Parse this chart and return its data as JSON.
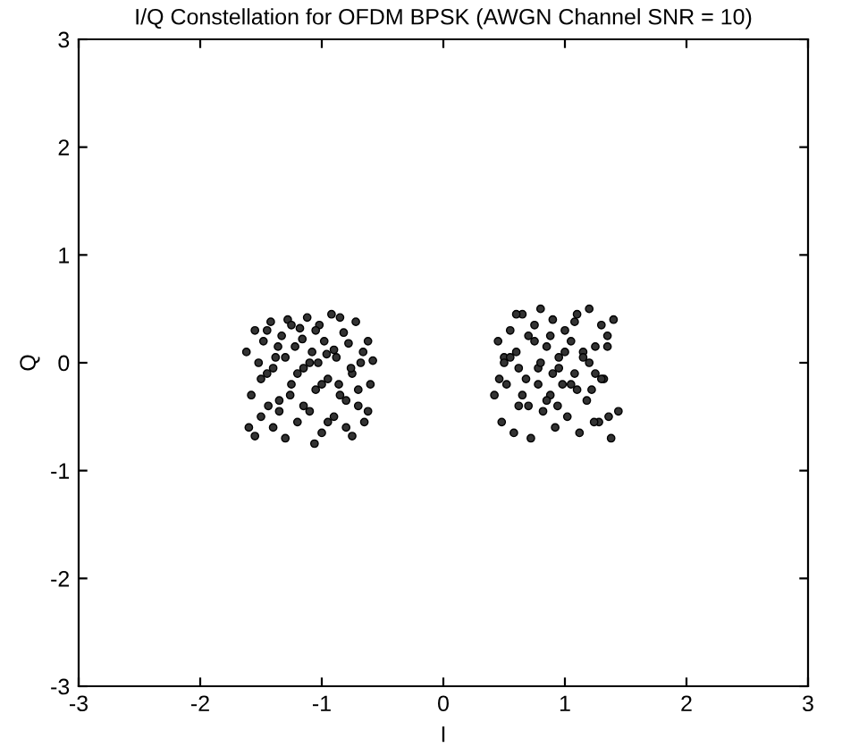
{
  "chart_data": {
    "type": "scatter",
    "title": "I/Q Constellation for OFDM BPSK (AWGN Channel SNR = 10)",
    "xlabel": "I",
    "ylabel": "Q",
    "xlim": [
      -3,
      3
    ],
    "ylim": [
      -3,
      3
    ],
    "xticks": [
      -3,
      -2,
      -1,
      0,
      1,
      2,
      3
    ],
    "yticks": [
      -3,
      -2,
      -1,
      0,
      1,
      2,
      3
    ],
    "grid": false,
    "marker": "circle",
    "series": [
      {
        "color": "#333333",
        "x": [
          -1.62,
          -1.58,
          -1.55,
          -1.5,
          -1.48,
          -1.45,
          -1.42,
          -1.4,
          -1.38,
          -1.35,
          -1.33,
          -1.3,
          -1.28,
          -1.25,
          -1.22,
          -1.2,
          -1.18,
          -1.15,
          -1.12,
          -1.1,
          -1.08,
          -1.05,
          -1.02,
          -1.0,
          -0.98,
          -0.95,
          -0.92,
          -0.9,
          -0.88,
          -0.85,
          -0.82,
          -0.8,
          -0.78,
          -0.75,
          -0.72,
          -0.7,
          -0.68,
          -0.65,
          -0.62,
          -0.6,
          -0.58,
          -1.6,
          -1.52,
          -1.44,
          -1.36,
          -1.26,
          -1.16,
          -1.06,
          -0.96,
          -0.86,
          -0.76,
          -0.66,
          -1.5,
          -1.4,
          -1.3,
          -1.2,
          -1.1,
          -1.0,
          -0.9,
          -0.8,
          -0.7,
          -1.45,
          -1.35,
          -1.25,
          -1.15,
          -1.05,
          -0.95,
          -0.85,
          -0.75,
          -1.03,
          -1.55,
          -0.62,
          0.42,
          0.45,
          0.48,
          0.5,
          0.52,
          0.55,
          0.58,
          0.6,
          0.62,
          0.65,
          0.68,
          0.7,
          0.72,
          0.75,
          0.78,
          0.8,
          0.82,
          0.85,
          0.88,
          0.9,
          0.92,
          0.95,
          0.98,
          1.0,
          1.02,
          1.05,
          1.08,
          1.1,
          1.12,
          1.15,
          1.18,
          1.2,
          1.22,
          1.25,
          1.28,
          1.3,
          1.32,
          1.35,
          1.38,
          1.4,
          1.44,
          0.5,
          0.6,
          0.7,
          0.8,
          0.9,
          1.0,
          1.1,
          1.2,
          1.3,
          0.55,
          0.65,
          0.75,
          0.85,
          0.95,
          1.05,
          1.15,
          1.25,
          1.35,
          0.62,
          0.78,
          0.94,
          1.08,
          1.24,
          0.88,
          1.36,
          0.46
        ],
        "values": [
          0.1,
          -0.3,
          0.3,
          -0.5,
          0.2,
          -0.1,
          0.38,
          -0.6,
          0.05,
          -0.35,
          0.25,
          -0.7,
          0.4,
          -0.2,
          0.15,
          -0.55,
          0.32,
          -0.05,
          0.42,
          -0.45,
          0.1,
          -0.25,
          0.35,
          -0.65,
          0.2,
          -0.15,
          0.45,
          -0.5,
          0.05,
          -0.3,
          0.28,
          -0.6,
          0.18,
          -0.1,
          0.38,
          -0.4,
          0.0,
          -0.55,
          0.2,
          -0.2,
          0.02,
          -0.6,
          0.0,
          -0.4,
          0.15,
          -0.3,
          0.22,
          -0.75,
          0.08,
          -0.2,
          -0.05,
          0.1,
          -0.15,
          -0.05,
          0.05,
          -0.1,
          0.0,
          -0.2,
          0.12,
          -0.35,
          -0.25,
          0.3,
          -0.45,
          0.35,
          -0.4,
          0.3,
          -0.55,
          0.42,
          -0.68,
          0.0,
          -0.68,
          -0.45,
          -0.3,
          0.2,
          -0.55,
          0.05,
          -0.2,
          0.3,
          -0.65,
          0.1,
          -0.4,
          0.45,
          -0.15,
          0.25,
          -0.7,
          0.35,
          -0.05,
          0.5,
          -0.45,
          0.15,
          -0.3,
          0.4,
          -0.6,
          0.05,
          -0.2,
          0.3,
          -0.5,
          0.2,
          -0.1,
          0.45,
          -0.65,
          0.1,
          -0.35,
          0.5,
          -0.25,
          0.15,
          -0.55,
          0.35,
          -0.15,
          0.25,
          -0.7,
          0.4,
          -0.45,
          0.0,
          0.45,
          -0.4,
          0.0,
          -0.1,
          0.1,
          -0.25,
          0.0,
          -0.15,
          0.05,
          -0.3,
          0.2,
          -0.35,
          -0.05,
          -0.2,
          0.05,
          -0.1,
          0.15,
          -0.05,
          -0.2,
          -0.4,
          0.38,
          -0.55,
          0.25,
          -0.5,
          -0.15
        ]
      }
    ]
  }
}
